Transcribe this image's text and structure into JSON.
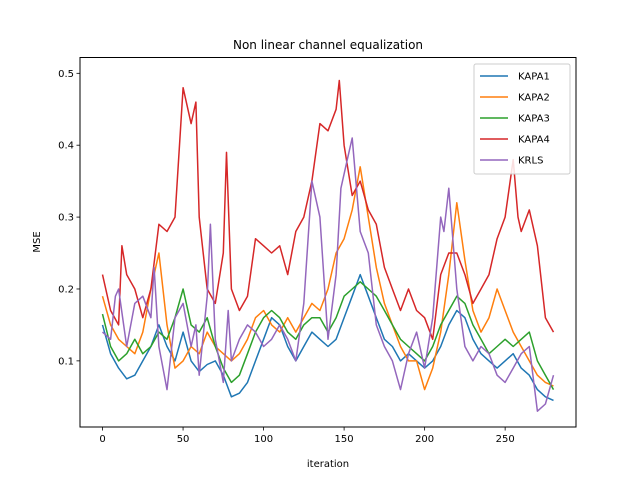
{
  "chart_data": {
    "type": "line",
    "title": "Non linear channel equalization",
    "xlabel": "iteration",
    "ylabel": "MSE",
    "xlim": [
      -14,
      294
    ],
    "ylim": [
      0.008,
      0.522
    ],
    "xticks": [
      0,
      50,
      100,
      150,
      200,
      250
    ],
    "yticks": [
      0.1,
      0.2,
      0.3,
      0.4,
      0.5
    ],
    "ytick_labels": [
      "0.1",
      "0.2",
      "0.3",
      "0.4",
      "0.5"
    ],
    "grid": false,
    "legend_position": "top-right",
    "series": [
      {
        "name": "KAPA1",
        "color": "#1f77b4",
        "points": [
          [
            0,
            0.15
          ],
          [
            5,
            0.11
          ],
          [
            10,
            0.09
          ],
          [
            15,
            0.075
          ],
          [
            20,
            0.08
          ],
          [
            25,
            0.1
          ],
          [
            30,
            0.12
          ],
          [
            35,
            0.15
          ],
          [
            40,
            0.12
          ],
          [
            45,
            0.1
          ],
          [
            50,
            0.14
          ],
          [
            55,
            0.1
          ],
          [
            60,
            0.085
          ],
          [
            65,
            0.095
          ],
          [
            70,
            0.1
          ],
          [
            75,
            0.08
          ],
          [
            80,
            0.05
          ],
          [
            85,
            0.055
          ],
          [
            90,
            0.07
          ],
          [
            95,
            0.1
          ],
          [
            100,
            0.13
          ],
          [
            105,
            0.16
          ],
          [
            110,
            0.15
          ],
          [
            115,
            0.12
          ],
          [
            120,
            0.1
          ],
          [
            125,
            0.12
          ],
          [
            130,
            0.14
          ],
          [
            135,
            0.13
          ],
          [
            140,
            0.12
          ],
          [
            145,
            0.13
          ],
          [
            150,
            0.16
          ],
          [
            155,
            0.19
          ],
          [
            160,
            0.22
          ],
          [
            165,
            0.19
          ],
          [
            170,
            0.16
          ],
          [
            175,
            0.13
          ],
          [
            180,
            0.12
          ],
          [
            185,
            0.1
          ],
          [
            190,
            0.11
          ],
          [
            195,
            0.1
          ],
          [
            200,
            0.09
          ],
          [
            205,
            0.1
          ],
          [
            210,
            0.12
          ],
          [
            215,
            0.15
          ],
          [
            220,
            0.17
          ],
          [
            225,
            0.16
          ],
          [
            230,
            0.13
          ],
          [
            235,
            0.11
          ],
          [
            240,
            0.1
          ],
          [
            245,
            0.09
          ],
          [
            250,
            0.1
          ],
          [
            255,
            0.11
          ],
          [
            260,
            0.09
          ],
          [
            265,
            0.08
          ],
          [
            270,
            0.06
          ],
          [
            275,
            0.05
          ],
          [
            280,
            0.045
          ]
        ]
      },
      {
        "name": "KAPA2",
        "color": "#ff7f0e",
        "points": [
          [
            0,
            0.19
          ],
          [
            5,
            0.15
          ],
          [
            10,
            0.13
          ],
          [
            15,
            0.12
          ],
          [
            20,
            0.11
          ],
          [
            25,
            0.14
          ],
          [
            30,
            0.2
          ],
          [
            35,
            0.25
          ],
          [
            40,
            0.15
          ],
          [
            45,
            0.09
          ],
          [
            50,
            0.1
          ],
          [
            55,
            0.12
          ],
          [
            60,
            0.11
          ],
          [
            65,
            0.14
          ],
          [
            70,
            0.12
          ],
          [
            75,
            0.11
          ],
          [
            80,
            0.1
          ],
          [
            85,
            0.11
          ],
          [
            90,
            0.13
          ],
          [
            95,
            0.16
          ],
          [
            100,
            0.17
          ],
          [
            105,
            0.15
          ],
          [
            110,
            0.14
          ],
          [
            115,
            0.16
          ],
          [
            120,
            0.14
          ],
          [
            125,
            0.16
          ],
          [
            130,
            0.18
          ],
          [
            135,
            0.17
          ],
          [
            140,
            0.2
          ],
          [
            145,
            0.25
          ],
          [
            150,
            0.27
          ],
          [
            155,
            0.31
          ],
          [
            160,
            0.37
          ],
          [
            165,
            0.3
          ],
          [
            170,
            0.23
          ],
          [
            175,
            0.18
          ],
          [
            180,
            0.15
          ],
          [
            185,
            0.12
          ],
          [
            190,
            0.1
          ],
          [
            195,
            0.1
          ],
          [
            200,
            0.06
          ],
          [
            205,
            0.09
          ],
          [
            210,
            0.14
          ],
          [
            215,
            0.22
          ],
          [
            220,
            0.32
          ],
          [
            225,
            0.24
          ],
          [
            230,
            0.17
          ],
          [
            235,
            0.14
          ],
          [
            240,
            0.16
          ],
          [
            245,
            0.2
          ],
          [
            250,
            0.17
          ],
          [
            255,
            0.14
          ],
          [
            260,
            0.12
          ],
          [
            265,
            0.1
          ],
          [
            270,
            0.08
          ],
          [
            275,
            0.07
          ],
          [
            280,
            0.065
          ]
        ]
      },
      {
        "name": "KAPA3",
        "color": "#2ca02c",
        "points": [
          [
            0,
            0.165
          ],
          [
            5,
            0.12
          ],
          [
            10,
            0.1
          ],
          [
            15,
            0.11
          ],
          [
            20,
            0.13
          ],
          [
            25,
            0.11
          ],
          [
            30,
            0.12
          ],
          [
            35,
            0.14
          ],
          [
            40,
            0.13
          ],
          [
            45,
            0.16
          ],
          [
            50,
            0.2
          ],
          [
            55,
            0.15
          ],
          [
            60,
            0.14
          ],
          [
            65,
            0.16
          ],
          [
            70,
            0.12
          ],
          [
            75,
            0.09
          ],
          [
            80,
            0.07
          ],
          [
            85,
            0.08
          ],
          [
            90,
            0.11
          ],
          [
            95,
            0.14
          ],
          [
            100,
            0.16
          ],
          [
            105,
            0.17
          ],
          [
            110,
            0.16
          ],
          [
            115,
            0.14
          ],
          [
            120,
            0.13
          ],
          [
            125,
            0.15
          ],
          [
            130,
            0.16
          ],
          [
            135,
            0.16
          ],
          [
            140,
            0.14
          ],
          [
            145,
            0.16
          ],
          [
            150,
            0.19
          ],
          [
            155,
            0.2
          ],
          [
            160,
            0.21
          ],
          [
            165,
            0.2
          ],
          [
            170,
            0.19
          ],
          [
            175,
            0.17
          ],
          [
            180,
            0.15
          ],
          [
            185,
            0.13
          ],
          [
            190,
            0.12
          ],
          [
            195,
            0.11
          ],
          [
            200,
            0.1
          ],
          [
            205,
            0.12
          ],
          [
            210,
            0.15
          ],
          [
            215,
            0.17
          ],
          [
            220,
            0.19
          ],
          [
            225,
            0.18
          ],
          [
            230,
            0.15
          ],
          [
            235,
            0.13
          ],
          [
            240,
            0.11
          ],
          [
            245,
            0.12
          ],
          [
            250,
            0.13
          ],
          [
            255,
            0.12
          ],
          [
            260,
            0.13
          ],
          [
            265,
            0.14
          ],
          [
            270,
            0.1
          ],
          [
            275,
            0.08
          ],
          [
            280,
            0.06
          ]
        ]
      },
      {
        "name": "KAPA4",
        "color": "#d62728",
        "points": [
          [
            0,
            0.22
          ],
          [
            5,
            0.17
          ],
          [
            10,
            0.15
          ],
          [
            12,
            0.26
          ],
          [
            15,
            0.22
          ],
          [
            20,
            0.2
          ],
          [
            25,
            0.16
          ],
          [
            30,
            0.2
          ],
          [
            35,
            0.29
          ],
          [
            40,
            0.28
          ],
          [
            45,
            0.3
          ],
          [
            50,
            0.48
          ],
          [
            55,
            0.43
          ],
          [
            58,
            0.46
          ],
          [
            60,
            0.3
          ],
          [
            65,
            0.2
          ],
          [
            70,
            0.18
          ],
          [
            75,
            0.25
          ],
          [
            77,
            0.39
          ],
          [
            80,
            0.2
          ],
          [
            85,
            0.17
          ],
          [
            90,
            0.19
          ],
          [
            95,
            0.27
          ],
          [
            100,
            0.26
          ],
          [
            105,
            0.25
          ],
          [
            110,
            0.26
          ],
          [
            115,
            0.22
          ],
          [
            120,
            0.28
          ],
          [
            125,
            0.3
          ],
          [
            130,
            0.35
          ],
          [
            135,
            0.43
          ],
          [
            140,
            0.42
          ],
          [
            145,
            0.45
          ],
          [
            147,
            0.49
          ],
          [
            150,
            0.4
          ],
          [
            155,
            0.33
          ],
          [
            160,
            0.35
          ],
          [
            165,
            0.31
          ],
          [
            170,
            0.29
          ],
          [
            175,
            0.23
          ],
          [
            180,
            0.2
          ],
          [
            185,
            0.17
          ],
          [
            190,
            0.2
          ],
          [
            195,
            0.17
          ],
          [
            200,
            0.16
          ],
          [
            205,
            0.13
          ],
          [
            210,
            0.22
          ],
          [
            215,
            0.25
          ],
          [
            220,
            0.25
          ],
          [
            225,
            0.22
          ],
          [
            230,
            0.18
          ],
          [
            235,
            0.2
          ],
          [
            240,
            0.22
          ],
          [
            245,
            0.27
          ],
          [
            250,
            0.3
          ],
          [
            255,
            0.38
          ],
          [
            258,
            0.3
          ],
          [
            260,
            0.28
          ],
          [
            265,
            0.31
          ],
          [
            270,
            0.26
          ],
          [
            275,
            0.16
          ],
          [
            280,
            0.14
          ]
        ]
      },
      {
        "name": "KRLS",
        "color": "#9467bd",
        "points": [
          [
            0,
            0.14
          ],
          [
            5,
            0.13
          ],
          [
            8,
            0.19
          ],
          [
            10,
            0.2
          ],
          [
            15,
            0.12
          ],
          [
            20,
            0.18
          ],
          [
            25,
            0.19
          ],
          [
            30,
            0.16
          ],
          [
            32,
            0.23
          ],
          [
            35,
            0.12
          ],
          [
            40,
            0.06
          ],
          [
            45,
            0.16
          ],
          [
            50,
            0.18
          ],
          [
            55,
            0.12
          ],
          [
            58,
            0.15
          ],
          [
            60,
            0.08
          ],
          [
            65,
            0.19
          ],
          [
            67,
            0.29
          ],
          [
            70,
            0.13
          ],
          [
            75,
            0.07
          ],
          [
            78,
            0.17
          ],
          [
            80,
            0.1
          ],
          [
            85,
            0.13
          ],
          [
            90,
            0.15
          ],
          [
            95,
            0.14
          ],
          [
            100,
            0.12
          ],
          [
            105,
            0.13
          ],
          [
            110,
            0.15
          ],
          [
            115,
            0.13
          ],
          [
            120,
            0.1
          ],
          [
            125,
            0.18
          ],
          [
            130,
            0.35
          ],
          [
            135,
            0.3
          ],
          [
            140,
            0.13
          ],
          [
            145,
            0.22
          ],
          [
            148,
            0.34
          ],
          [
            152,
            0.38
          ],
          [
            155,
            0.41
          ],
          [
            160,
            0.28
          ],
          [
            165,
            0.25
          ],
          [
            170,
            0.15
          ],
          [
            175,
            0.12
          ],
          [
            180,
            0.1
          ],
          [
            185,
            0.06
          ],
          [
            190,
            0.11
          ],
          [
            195,
            0.14
          ],
          [
            200,
            0.09
          ],
          [
            205,
            0.16
          ],
          [
            210,
            0.3
          ],
          [
            212,
            0.28
          ],
          [
            215,
            0.34
          ],
          [
            220,
            0.2
          ],
          [
            225,
            0.12
          ],
          [
            230,
            0.1
          ],
          [
            235,
            0.12
          ],
          [
            240,
            0.11
          ],
          [
            245,
            0.08
          ],
          [
            250,
            0.07
          ],
          [
            255,
            0.09
          ],
          [
            260,
            0.11
          ],
          [
            265,
            0.12
          ],
          [
            270,
            0.03
          ],
          [
            275,
            0.04
          ],
          [
            280,
            0.08
          ]
        ]
      }
    ]
  }
}
